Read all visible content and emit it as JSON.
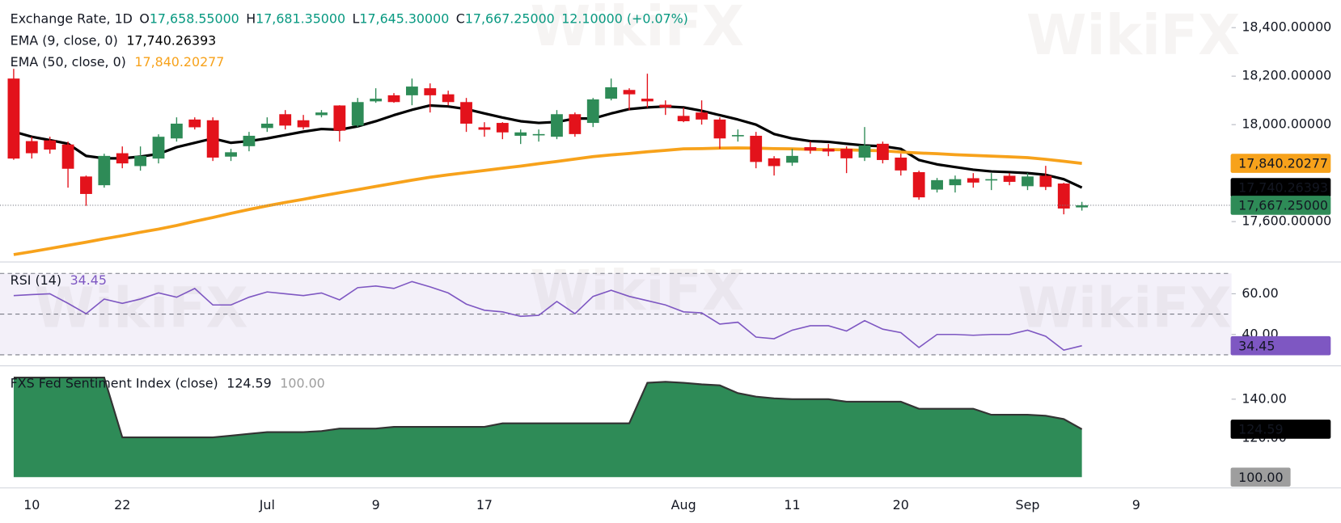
{
  "watermark": "WikiFX",
  "chart_data": [
    {
      "type": "candlestick",
      "title": "Exchange Rate, 1D",
      "ohlc": [
        {
          "name": "O",
          "label": "17,658.55000"
        },
        {
          "name": "H",
          "label": "17,681.35000"
        },
        {
          "name": "L",
          "label": "17,645.30000"
        },
        {
          "name": "C",
          "label": "17,667.25000"
        }
      ],
      "change": "12.10000 (+0.07%)",
      "categories": [
        null,
        "10",
        null,
        null,
        null,
        null,
        "22",
        null,
        null,
        null,
        null,
        null,
        null,
        null,
        "Jul",
        null,
        null,
        null,
        null,
        null,
        "9",
        null,
        null,
        null,
        null,
        null,
        "17",
        null,
        null,
        null,
        null,
        null,
        null,
        null,
        null,
        null,
        null,
        "Aug",
        null,
        null,
        null,
        null,
        null,
        "11",
        null,
        null,
        null,
        null,
        null,
        "20",
        null,
        null,
        null,
        null,
        null,
        null,
        "Sep",
        null,
        null,
        null,
        null,
        null,
        "9"
      ],
      "open": [
        18190,
        17932,
        17935,
        17918,
        17786,
        17750,
        17882,
        17829,
        17860,
        17943,
        18021,
        18018,
        17868,
        17911,
        17986,
        18043,
        18018,
        18039,
        18079,
        17996,
        18096,
        18121,
        18121,
        18150,
        18125,
        18093,
        17989,
        18007,
        17954,
        17957,
        17950,
        18043,
        18007,
        18107,
        18143,
        18107,
        18082,
        18036,
        18050,
        18021,
        17954,
        17954,
        17861,
        17843,
        17907,
        17900,
        17900,
        17864,
        17921,
        17864,
        17804,
        17732,
        17750,
        17779,
        17771,
        17789,
        17746,
        17789,
        17757,
        17658.55,
        null,
        null,
        null
      ],
      "high": [
        18230,
        17950,
        17950,
        17930,
        17790,
        17880,
        17910,
        17910,
        17960,
        18030,
        18030,
        18030,
        17900,
        17970,
        18030,
        18060,
        18040,
        18060,
        18080,
        18110,
        18150,
        18130,
        18190,
        18170,
        18140,
        18110,
        18010,
        18010,
        17980,
        17980,
        18060,
        18050,
        18110,
        18190,
        18150,
        18210,
        18100,
        18070,
        18100,
        18030,
        17980,
        17970,
        17870,
        17900,
        17930,
        17920,
        17910,
        17990,
        17930,
        17880,
        17810,
        17780,
        17790,
        17800,
        17800,
        17800,
        17800,
        17830,
        17760,
        17681.35,
        null,
        null,
        null
      ],
      "low": [
        17855,
        17860,
        17880,
        17740,
        17665,
        17740,
        17820,
        17810,
        17840,
        17930,
        17980,
        17850,
        17850,
        17890,
        17970,
        17980,
        17980,
        18030,
        17930,
        17990,
        18090,
        18090,
        18080,
        18050,
        18080,
        17970,
        17950,
        17940,
        17920,
        17930,
        17940,
        17950,
        17990,
        18100,
        18060,
        18070,
        18040,
        18010,
        18000,
        17900,
        17930,
        17820,
        17790,
        17830,
        17880,
        17870,
        17800,
        17850,
        17840,
        17790,
        17690,
        17720,
        17720,
        17740,
        17730,
        17750,
        17730,
        17730,
        17630,
        17645.3,
        null,
        null,
        null
      ],
      "close": [
        17860,
        17882,
        17897,
        17818,
        17714,
        17871,
        17840,
        17871,
        17950,
        18004,
        17989,
        17864,
        17886,
        17954,
        18004,
        17996,
        17989,
        18050,
        17975,
        18093,
        18107,
        18093,
        18157,
        18121,
        18093,
        18004,
        17979,
        17968,
        17968,
        17961,
        18043,
        17961,
        18104,
        18154,
        18125,
        18096,
        18071,
        18014,
        18021,
        17943,
        17957,
        17846,
        17829,
        17871,
        17893,
        17889,
        17861,
        17914,
        17854,
        17811,
        17700,
        17771,
        17775,
        17761,
        17775,
        17764,
        17786,
        17743,
        17654,
        17667.25,
        null,
        null,
        null
      ],
      "close_label": "17,667.25000",
      "up_color": "#2e8b57",
      "down_color": "#e3121b",
      "series": [
        {
          "name": "EMA (9, close, 0)",
          "color": "#000000",
          "value_label": "17,740.26393",
          "values": [
            17971,
            17950,
            17936,
            17921,
            17871,
            17861,
            17861,
            17868,
            17879,
            17907,
            17925,
            17943,
            17925,
            17932,
            17943,
            17957,
            17971,
            17982,
            17979,
            17993,
            18014,
            18039,
            18061,
            18079,
            18075,
            18064,
            18046,
            18029,
            18014,
            18007,
            18011,
            18025,
            18025,
            18046,
            18064,
            18071,
            18075,
            18071,
            18057,
            18039,
            18021,
            18000,
            17961,
            17943,
            17932,
            17929,
            17921,
            17914,
            17911,
            17900,
            17854,
            17836,
            17825,
            17814,
            17807,
            17804,
            17800,
            17793,
            17775,
            17740.26393,
            null,
            null,
            null
          ]
        },
        {
          "name": "EMA (50, close, 0)",
          "color": "#f7a21b",
          "value_label": "17,840.20277",
          "values": [
            17464,
            17476,
            17489,
            17502,
            17515,
            17529,
            17542,
            17556,
            17569,
            17584,
            17601,
            17617,
            17634,
            17650,
            17665,
            17679,
            17692,
            17706,
            17719,
            17732,
            17745,
            17758,
            17771,
            17783,
            17793,
            17802,
            17811,
            17820,
            17829,
            17839,
            17848,
            17858,
            17868,
            17875,
            17881,
            17888,
            17894,
            17900,
            17901,
            17903,
            17904,
            17903,
            17901,
            17900,
            17898,
            17897,
            17896,
            17894,
            17892,
            17887,
            17883,
            17880,
            17876,
            17873,
            17870,
            17867,
            17864,
            17857,
            17849,
            17840.20277,
            null,
            null,
            null
          ]
        }
      ],
      "ylim": [
        17439,
        18514
      ],
      "yticks": [
        {
          "value": 18400,
          "label": "18,400.00000"
        },
        {
          "value": 18200,
          "label": "18,200.00000"
        },
        {
          "value": 18000,
          "label": "18,000.00000"
        },
        {
          "value": 17600,
          "label": "17,600.00000"
        }
      ]
    },
    {
      "type": "line",
      "title": "RSI (14)",
      "color": "#7e57c2",
      "value_label": "34.45",
      "values": [
        59.1,
        59.6,
        60.0,
        55.3,
        50.2,
        57.4,
        55.3,
        57.4,
        60.4,
        58.3,
        62.6,
        54.5,
        54.5,
        58.3,
        60.9,
        60.0,
        59.1,
        60.4,
        57.0,
        63.0,
        63.8,
        62.6,
        66.0,
        63.4,
        60.4,
        54.9,
        51.9,
        51.1,
        48.9,
        49.4,
        56.2,
        50.2,
        58.7,
        61.7,
        58.7,
        56.6,
        54.5,
        51.1,
        50.6,
        45.1,
        46.0,
        38.7,
        37.9,
        42.1,
        44.3,
        44.3,
        41.7,
        46.8,
        42.6,
        40.9,
        33.6,
        40.0,
        40.0,
        39.6,
        40.0,
        40.0,
        42.1,
        39.1,
        32.3,
        34.45,
        null,
        null,
        null
      ],
      "levels": [
        70,
        50,
        30
      ],
      "ylim": [
        25,
        75
      ],
      "yticks": [
        {
          "value": 60,
          "label": "60.00"
        },
        {
          "value": 40,
          "label": "40.00"
        }
      ]
    },
    {
      "type": "area",
      "title": "FXS Fed Sentiment Index (close)",
      "color": "#2e8b57",
      "line_color": "#333333",
      "value_label": "124.59",
      "baseline": {
        "value": 100,
        "label": "100.00"
      },
      "values": [
        151.1,
        151.1,
        151.1,
        151.1,
        151.1,
        151.1,
        120.4,
        120.4,
        120.4,
        120.4,
        120.4,
        120.4,
        121.3,
        122.2,
        123.1,
        123.1,
        123.1,
        123.6,
        124.9,
        124.9,
        124.9,
        125.8,
        125.8,
        125.8,
        125.8,
        125.8,
        125.8,
        127.6,
        127.6,
        127.6,
        127.6,
        127.6,
        127.6,
        127.6,
        127.6,
        148.4,
        148.9,
        148.4,
        147.6,
        147.1,
        143.1,
        141.3,
        140.4,
        140.0,
        140.0,
        140.0,
        138.7,
        138.7,
        138.7,
        138.7,
        135.1,
        135.1,
        135.1,
        135.1,
        132.0,
        132.0,
        132.0,
        131.5,
        129.8,
        124.59,
        null,
        null,
        null
      ],
      "ylim": [
        100,
        156
      ],
      "yticks": [
        {
          "value": 140,
          "label": "140.00"
        },
        {
          "value": 120,
          "label": "120.00"
        }
      ]
    }
  ]
}
